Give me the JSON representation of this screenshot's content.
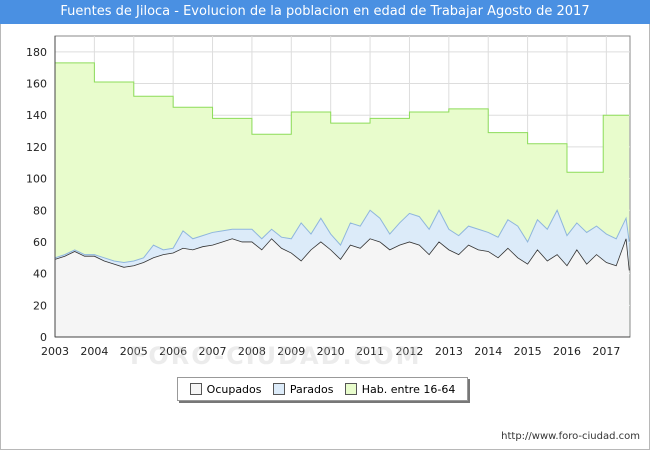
{
  "title": "Fuentes de Jiloca - Evolucion de la poblacion en edad de Trabajar Agosto de 2017",
  "footer": "http://www.foro-ciudad.com",
  "watermark": "FORO-CIUDAD.COM",
  "colors": {
    "title_bar": "#4a90e2",
    "hab_fill": "#e8fccc",
    "hab_line": "#8ddc5a",
    "parados_fill": "#dcebf9",
    "parados_line": "#8fb6dd",
    "ocupados_fill": "#f5f5f5",
    "ocupados_line": "#333333",
    "grid": "#dddddd"
  },
  "legend": [
    {
      "label": "Ocupados",
      "color": "#f5f5f5"
    },
    {
      "label": "Parados",
      "color": "#dcebf9"
    },
    {
      "label": "Hab. entre 16-64",
      "color": "#e8fccc"
    }
  ],
  "chart_data": {
    "type": "area",
    "title": "Fuentes de Jiloca - Evolucion de la poblacion en edad de Trabajar Agosto de 2017",
    "xlabel": "",
    "ylabel": "",
    "xlim": [
      2003,
      2017.6
    ],
    "ylim": [
      0,
      190
    ],
    "y_ticks": [
      0,
      20,
      40,
      60,
      80,
      100,
      120,
      140,
      160,
      180
    ],
    "x_ticks": [
      2003,
      2004,
      2005,
      2006,
      2007,
      2008,
      2009,
      2010,
      2011,
      2012,
      2013,
      2014,
      2015,
      2016,
      2017
    ],
    "grid": true,
    "legend_position": "bottom-center",
    "series": [
      {
        "name": "Hab. entre 16-64",
        "x": [
          2003,
          2004,
          2004,
          2005,
          2005,
          2006,
          2006,
          2007,
          2007,
          2008,
          2008,
          2009,
          2009,
          2010,
          2010,
          2011,
          2011,
          2012,
          2012,
          2013,
          2013,
          2014,
          2014,
          2015,
          2015,
          2016,
          2016,
          2016.92,
          2016.92,
          2017.58
        ],
        "values": [
          173,
          173,
          161,
          161,
          152,
          152,
          145,
          145,
          138,
          138,
          128,
          128,
          142,
          142,
          135,
          135,
          138,
          138,
          142,
          142,
          144,
          144,
          129,
          129,
          122,
          122,
          104,
          104,
          140,
          140
        ]
      },
      {
        "name": "Parados",
        "x": [
          2003,
          2003.25,
          2003.5,
          2003.75,
          2004,
          2004.25,
          2004.5,
          2004.75,
          2005,
          2005.25,
          2005.5,
          2005.75,
          2006,
          2006.25,
          2006.5,
          2006.75,
          2007,
          2007.25,
          2007.5,
          2007.75,
          2008,
          2008.25,
          2008.5,
          2008.75,
          2009,
          2009.25,
          2009.5,
          2009.75,
          2010,
          2010.25,
          2010.5,
          2010.75,
          2011,
          2011.25,
          2011.5,
          2011.75,
          2012,
          2012.25,
          2012.5,
          2012.75,
          2013,
          2013.25,
          2013.5,
          2013.75,
          2014,
          2014.25,
          2014.5,
          2014.75,
          2015,
          2015.25,
          2015.5,
          2015.75,
          2016,
          2016.25,
          2016.5,
          2016.75,
          2017,
          2017.25,
          2017.5,
          2017.58
        ],
        "values": [
          50,
          52,
          55,
          52,
          52,
          50,
          48,
          47,
          48,
          50,
          58,
          55,
          56,
          67,
          62,
          64,
          66,
          67,
          68,
          68,
          68,
          62,
          68,
          63,
          62,
          72,
          65,
          75,
          65,
          58,
          72,
          70,
          80,
          75,
          65,
          72,
          78,
          76,
          68,
          80,
          68,
          64,
          70,
          68,
          66,
          63,
          74,
          70,
          60,
          74,
          68,
          80,
          64,
          72,
          66,
          70,
          65,
          62,
          75,
          60
        ]
      },
      {
        "name": "Ocupados",
        "x": [
          2003,
          2003.25,
          2003.5,
          2003.75,
          2004,
          2004.25,
          2004.5,
          2004.75,
          2005,
          2005.25,
          2005.5,
          2005.75,
          2006,
          2006.25,
          2006.5,
          2006.75,
          2007,
          2007.25,
          2007.5,
          2007.75,
          2008,
          2008.25,
          2008.5,
          2008.75,
          2009,
          2009.25,
          2009.5,
          2009.75,
          2010,
          2010.25,
          2010.5,
          2010.75,
          2011,
          2011.25,
          2011.5,
          2011.75,
          2012,
          2012.25,
          2012.5,
          2012.75,
          2013,
          2013.25,
          2013.5,
          2013.75,
          2014,
          2014.25,
          2014.5,
          2014.75,
          2015,
          2015.25,
          2015.5,
          2015.75,
          2016,
          2016.25,
          2016.5,
          2016.75,
          2017,
          2017.25,
          2017.5,
          2017.58
        ],
        "values": [
          49,
          51,
          54,
          51,
          51,
          48,
          46,
          44,
          45,
          47,
          50,
          52,
          53,
          56,
          55,
          57,
          58,
          60,
          62,
          60,
          60,
          55,
          62,
          56,
          53,
          48,
          55,
          60,
          55,
          49,
          58,
          56,
          62,
          60,
          55,
          58,
          60,
          58,
          52,
          60,
          55,
          52,
          58,
          55,
          54,
          50,
          56,
          50,
          46,
          55,
          48,
          52,
          45,
          55,
          46,
          52,
          47,
          45,
          62,
          42
        ]
      }
    ]
  }
}
